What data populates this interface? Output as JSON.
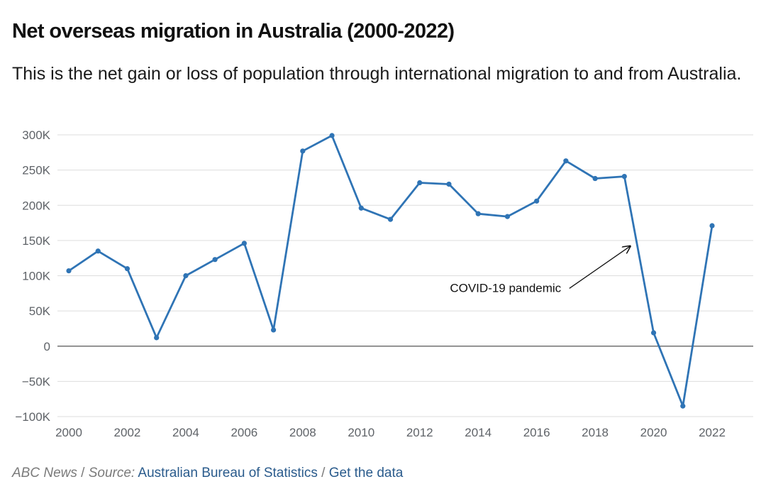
{
  "header": {
    "title": "Net overseas migration in Australia (2000-2022)",
    "subtitle": "This is the net gain or loss of population through international migration to and from Australia."
  },
  "footer": {
    "publisher": "ABC News",
    "separator": " / ",
    "source_label": "Source:",
    "source_name": "Australian Bureau of Statistics",
    "get_data_label": "Get the data"
  },
  "colors": {
    "line": "#2f74b5",
    "grid": "#dddddd",
    "zero_line": "#555555",
    "tick_text": "#5f6368",
    "link": "#2a5b8c"
  },
  "chart_data": {
    "type": "line",
    "title": "Net overseas migration in Australia (2000-2022)",
    "xlabel": "",
    "ylabel": "",
    "x": [
      2000,
      2001,
      2002,
      2003,
      2004,
      2005,
      2006,
      2007,
      2008,
      2009,
      2010,
      2011,
      2012,
      2013,
      2014,
      2015,
      2016,
      2017,
      2018,
      2019,
      2020,
      2021,
      2022
    ],
    "series": [
      {
        "name": "Net overseas migration",
        "values": [
          107000,
          135000,
          110000,
          12000,
          100000,
          123000,
          146000,
          23000,
          277000,
          299000,
          196000,
          180000,
          232000,
          230000,
          188000,
          184000,
          206000,
          263000,
          238000,
          241000,
          19000,
          -85000,
          171000
        ]
      }
    ],
    "ylim": [
      -100000,
      300000
    ],
    "xlim": [
      2000,
      2023.4
    ],
    "yticks": [
      -100000,
      -50000,
      0,
      50000,
      100000,
      150000,
      200000,
      250000,
      300000
    ],
    "ytick_labels": [
      "−100K",
      "−50K",
      "0",
      "50K",
      "100K",
      "150K",
      "200K",
      "250K",
      "300K"
    ],
    "xticks": [
      2000,
      2002,
      2004,
      2006,
      2008,
      2010,
      2012,
      2014,
      2016,
      2018,
      2020,
      2022
    ],
    "xtick_labels": [
      "2000",
      "2002",
      "2004",
      "2006",
      "2008",
      "2010",
      "2012",
      "2014",
      "2016",
      "2018",
      "2020",
      "2022"
    ],
    "grid": true,
    "legend": "none",
    "annotations": [
      {
        "text": "COVID-19 pandemic",
        "points_to": {
          "x": 2019.2,
          "y": 142000
        },
        "label_at": {
          "x": 2015.3,
          "y": 77000
        }
      }
    ]
  }
}
